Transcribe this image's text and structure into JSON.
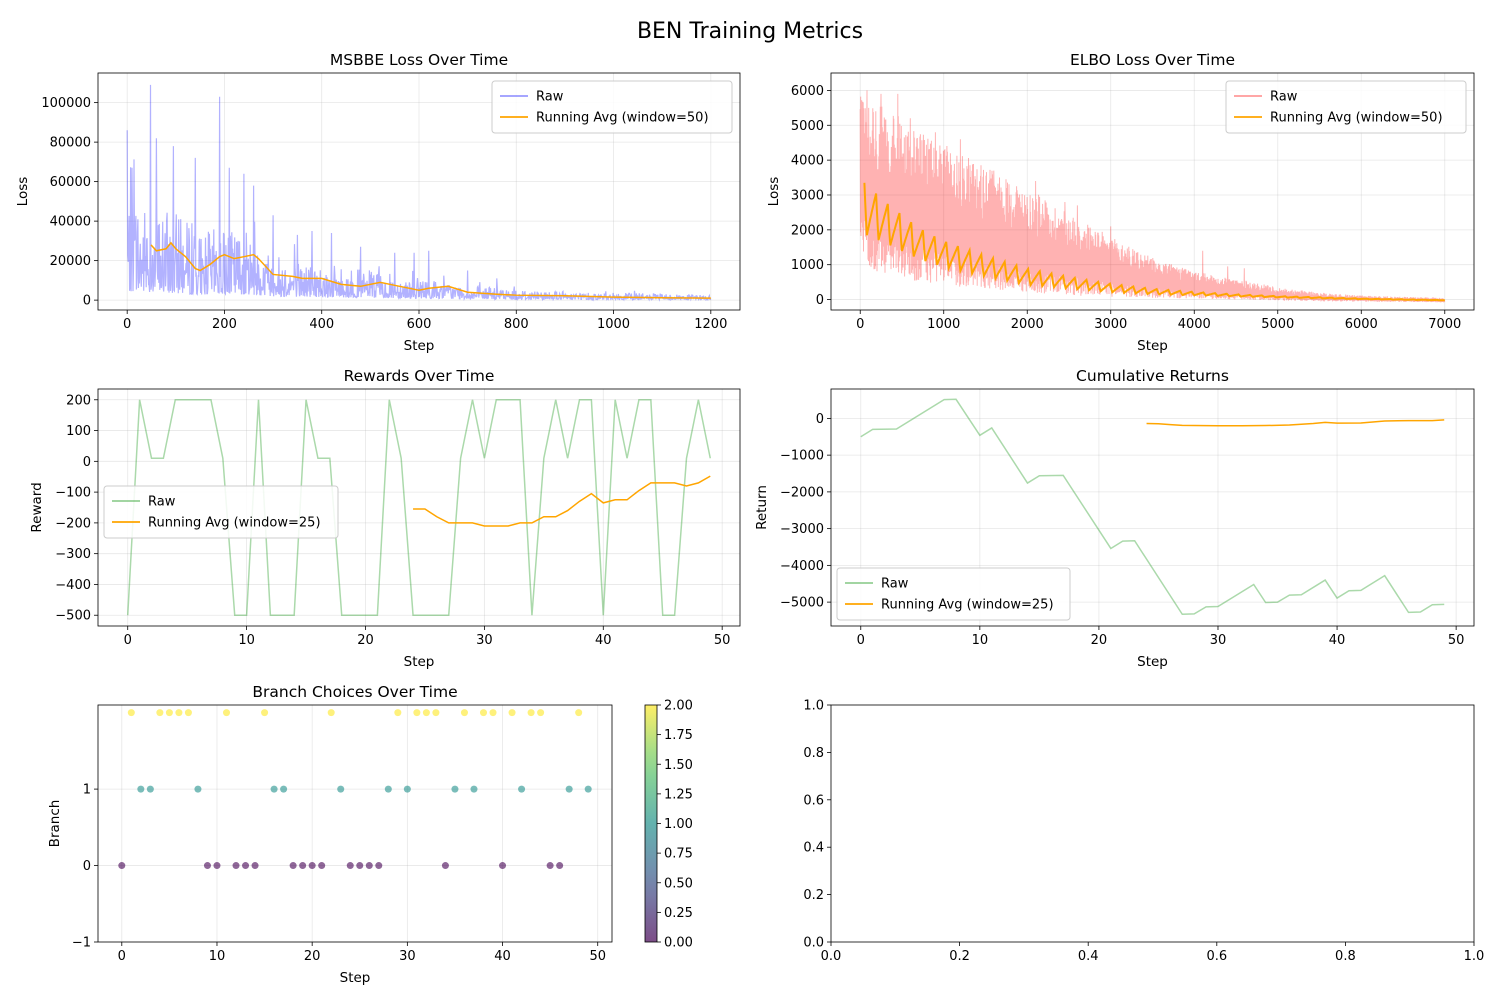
{
  "figure": {
    "title": "BEN Training Metrics"
  },
  "chart_data": [
    {
      "id": "msbbe",
      "type": "line",
      "title": "MSBBE Loss Over Time",
      "xlabel": "Step",
      "ylabel": "Loss",
      "xlim": [
        -60,
        1260
      ],
      "ylim": [
        -5000,
        115000
      ],
      "xticks": [
        0,
        200,
        400,
        600,
        800,
        1000,
        1200
      ],
      "yticks": [
        0,
        20000,
        40000,
        60000,
        80000,
        100000
      ],
      "grid": true,
      "legend": "top-right",
      "series": [
        {
          "name": "Raw",
          "color": "#0000ff",
          "alpha": 0.3,
          "style": "noisy",
          "n": 1201,
          "trend_x": [
            0,
            50,
            100,
            150,
            200,
            250,
            300,
            400,
            500,
            600,
            700,
            800,
            900,
            1000,
            1100,
            1200
          ],
          "trend_y": [
            30000,
            26000,
            24000,
            19000,
            20000,
            19000,
            13000,
            10000,
            8000,
            6000,
            4000,
            3000,
            2500,
            2000,
            1800,
            1500
          ],
          "peaks": [
            [
              0,
              86000
            ],
            [
              10,
              67000
            ],
            [
              48,
              109000
            ],
            [
              60,
              82000
            ],
            [
              95,
              78000
            ],
            [
              140,
              72000
            ],
            [
              190,
              103000
            ],
            [
              210,
              67000
            ],
            [
              240,
              64000
            ],
            [
              260,
              58000
            ],
            [
              300,
              43000
            ],
            [
              350,
              33000
            ],
            [
              380,
              35000
            ],
            [
              420,
              34000
            ],
            [
              480,
              27000
            ],
            [
              550,
              24000
            ],
            [
              590,
              24000
            ],
            [
              620,
              25000
            ],
            [
              700,
              15000
            ],
            [
              760,
              11000
            ]
          ]
        },
        {
          "name": "Running Avg (window=50)",
          "color": "#ffa500",
          "alpha": 1,
          "style": "line",
          "x": [
            49,
            60,
            80,
            90,
            100,
            120,
            140,
            150,
            170,
            190,
            200,
            220,
            240,
            260,
            270,
            300,
            340,
            360,
            400,
            440,
            480,
            520,
            560,
            600,
            620,
            660,
            700,
            760,
            800,
            900,
            1000,
            1100,
            1200
          ],
          "y": [
            28000,
            25000,
            26000,
            29000,
            26000,
            22000,
            16000,
            15000,
            18000,
            22000,
            23000,
            21000,
            22000,
            23000,
            21000,
            13000,
            12000,
            11000,
            11000,
            8000,
            7000,
            9000,
            7000,
            5000,
            6000,
            7000,
            4000,
            3000,
            2500,
            2200,
            1500,
            1200,
            1000
          ]
        }
      ]
    },
    {
      "id": "elbo",
      "type": "line",
      "title": "ELBO Loss Over Time",
      "xlabel": "Step",
      "ylabel": "Loss",
      "xlim": [
        -350,
        7350
      ],
      "ylim": [
        -300,
        6500
      ],
      "xticks": [
        0,
        1000,
        2000,
        3000,
        4000,
        5000,
        6000,
        7000
      ],
      "yticks": [
        0,
        1000,
        2000,
        3000,
        4000,
        5000,
        6000
      ],
      "grid": true,
      "legend": "top-right",
      "series": [
        {
          "name": "Raw",
          "color": "#ff0000",
          "alpha": 0.3,
          "style": "envelope",
          "x": [
            0,
            100,
            200,
            300,
            400,
            500,
            700,
            1000,
            1500,
            2000,
            2500,
            3000,
            3500,
            4000,
            4500,
            5000,
            5500,
            6000,
            6500,
            7000
          ],
          "upper": [
            6200,
            5800,
            5600,
            5500,
            5400,
            5200,
            4800,
            4500,
            3800,
            3200,
            2500,
            1800,
            1200,
            800,
            600,
            350,
            200,
            120,
            80,
            50
          ],
          "lower": [
            1500,
            900,
            800,
            750,
            700,
            600,
            500,
            400,
            300,
            200,
            120,
            80,
            50,
            20,
            0,
            -30,
            -50,
            -60,
            -70,
            -80
          ],
          "spikes": [
            [
              80,
              6000
            ],
            [
              250,
              5900
            ],
            [
              450,
              5900
            ],
            [
              600,
              5200
            ],
            [
              900,
              4800
            ],
            [
              1200,
              4600
            ],
            [
              1600,
              3700
            ],
            [
              2100,
              3400
            ],
            [
              2450,
              2800
            ],
            [
              2600,
              2700
            ],
            [
              3000,
              2100
            ],
            [
              4100,
              1400
            ],
            [
              4400,
              950
            ],
            [
              4600,
              900
            ]
          ]
        },
        {
          "name": "Running Avg (window=50)",
          "color": "#ffa500",
          "alpha": 1,
          "style": "sawtooth",
          "x_start": 50,
          "x_end": 7000,
          "period": 140,
          "env_x": [
            50,
            300,
            700,
            1000,
            1500,
            2000,
            2500,
            3000,
            3500,
            4000,
            4500,
            5000,
            6000,
            7000
          ],
          "env_y": [
            2600,
            2200,
            1600,
            1300,
            950,
            650,
            480,
            330,
            230,
            170,
            120,
            80,
            20,
            -20
          ],
          "amp_y": [
            750,
            600,
            450,
            380,
            300,
            230,
            170,
            120,
            80,
            50,
            30,
            20,
            10,
            5
          ]
        }
      ]
    },
    {
      "id": "rewards",
      "type": "line",
      "title": "Rewards Over Time",
      "xlabel": "Step",
      "ylabel": "Reward",
      "xlim": [
        -2.5,
        51.5
      ],
      "ylim": [
        -535,
        235
      ],
      "xticks": [
        0,
        10,
        20,
        30,
        40,
        50
      ],
      "yticks": [
        -500,
        -400,
        -300,
        -200,
        -100,
        0,
        100,
        200
      ],
      "grid": true,
      "legend": "center-left",
      "series": [
        {
          "name": "Raw",
          "color": "#2ca02c",
          "alpha": 0.4,
          "style": "line",
          "x": [
            0,
            1,
            2,
            3,
            4,
            5,
            6,
            7,
            8,
            9,
            10,
            11,
            12,
            13,
            14,
            15,
            16,
            17,
            18,
            19,
            20,
            21,
            22,
            23,
            24,
            25,
            26,
            27,
            28,
            29,
            30,
            31,
            32,
            33,
            34,
            35,
            36,
            37,
            38,
            39,
            40,
            41,
            42,
            43,
            44,
            45,
            46,
            47,
            48,
            49
          ],
          "y": [
            -500,
            200,
            10,
            10,
            200,
            200,
            200,
            200,
            10,
            -500,
            -500,
            200,
            -500,
            -500,
            -500,
            200,
            10,
            10,
            -500,
            -500,
            -500,
            -500,
            200,
            10,
            -500,
            -500,
            -500,
            -500,
            10,
            200,
            10,
            200,
            200,
            200,
            -500,
            10,
            200,
            10,
            200,
            200,
            -500,
            200,
            10,
            200,
            200,
            -500,
            -500,
            10,
            200,
            10
          ]
        },
        {
          "name": "Running Avg (window=25)",
          "color": "#ffa500",
          "alpha": 1,
          "style": "line",
          "x": [
            24,
            25,
            26,
            27,
            28,
            29,
            30,
            31,
            32,
            33,
            34,
            35,
            36,
            37,
            38,
            39,
            40,
            41,
            42,
            43,
            44,
            45,
            46,
            47,
            48,
            49
          ],
          "y": [
            -155,
            -155,
            -180,
            -200,
            -200,
            -200,
            -210,
            -210,
            -210,
            -200,
            -200,
            -180,
            -180,
            -160,
            -130,
            -105,
            -135,
            -125,
            -125,
            -95,
            -70,
            -70,
            -70,
            -80,
            -70,
            -48
          ]
        }
      ]
    },
    {
      "id": "returns",
      "type": "line",
      "title": "Cumulative Returns",
      "xlabel": "Step",
      "ylabel": "Return",
      "xlim": [
        -2.5,
        51.5
      ],
      "ylim": [
        -5650,
        800
      ],
      "xticks": [
        0,
        10,
        20,
        30,
        40,
        50
      ],
      "yticks": [
        -5000,
        -4000,
        -3000,
        -2000,
        -1000,
        0
      ],
      "grid": true,
      "legend": "bottom-left",
      "series": [
        {
          "name": "Raw",
          "color": "#2ca02c",
          "alpha": 0.4,
          "style": "line",
          "x": [
            0,
            1,
            3,
            7,
            8,
            10,
            11,
            14,
            15,
            17,
            21,
            22,
            23,
            27,
            28,
            29,
            30,
            33,
            34,
            35,
            36,
            37,
            39,
            40,
            41,
            42,
            44,
            46,
            47,
            48,
            49
          ],
          "y": [
            -500,
            -300,
            -290,
            510,
            520,
            -460,
            -260,
            -1760,
            -1560,
            -1550,
            -3540,
            -3340,
            -3330,
            -5330,
            -5320,
            -5130,
            -5120,
            -4520,
            -5010,
            -5000,
            -4810,
            -4800,
            -4400,
            -4890,
            -4690,
            -4680,
            -4280,
            -5280,
            -5270,
            -5070,
            -5060
          ]
        },
        {
          "name": "Running Avg (window=25)",
          "color": "#ffa500",
          "alpha": 1,
          "style": "line",
          "x": [
            24,
            25,
            26,
            27,
            28,
            30,
            32,
            34,
            36,
            38,
            39,
            40,
            42,
            44,
            46,
            48,
            49
          ],
          "y": [
            -140,
            -145,
            -170,
            -190,
            -195,
            -200,
            -200,
            -195,
            -180,
            -140,
            -110,
            -130,
            -125,
            -70,
            -60,
            -60,
            -40
          ]
        }
      ]
    },
    {
      "id": "branch",
      "type": "scatter",
      "title": "Branch Choices Over Time",
      "xlabel": "Step",
      "ylabel": "Branch",
      "xlim": [
        -2.5,
        51.5
      ],
      "ylim": [
        -1,
        2.1
      ],
      "xticks": [
        0,
        10,
        20,
        30,
        40,
        50
      ],
      "yticks": [
        -1,
        0,
        1
      ],
      "grid": true,
      "colormap": "viridis",
      "alpha": 0.6,
      "colorbar": {
        "min": 0,
        "max": 2,
        "ticks": [
          0.0,
          0.25,
          0.5,
          0.75,
          1.0,
          1.25,
          1.5,
          1.75,
          2.0
        ]
      },
      "x": [
        0,
        1,
        2,
        3,
        4,
        5,
        6,
        7,
        8,
        9,
        10,
        11,
        12,
        13,
        14,
        15,
        16,
        17,
        18,
        19,
        20,
        21,
        22,
        23,
        24,
        25,
        26,
        27,
        28,
        29,
        30,
        31,
        32,
        33,
        34,
        35,
        36,
        37,
        38,
        39,
        40,
        41,
        42,
        43,
        44,
        45,
        46,
        47,
        48,
        49
      ],
      "y": [
        0,
        2,
        1,
        1,
        2,
        2,
        2,
        2,
        1,
        0,
        0,
        2,
        0,
        0,
        0,
        2,
        1,
        1,
        0,
        0,
        0,
        0,
        2,
        1,
        0,
        0,
        0,
        0,
        1,
        2,
        1,
        2,
        2,
        2,
        0,
        1,
        2,
        1,
        2,
        2,
        0,
        2,
        1,
        2,
        2,
        0,
        0,
        1,
        2,
        1
      ]
    },
    {
      "id": "empty",
      "type": "line",
      "title": "",
      "xlabel": "",
      "ylabel": "",
      "xlim": [
        0,
        1
      ],
      "ylim": [
        0,
        1
      ],
      "xticks": [
        0.0,
        0.2,
        0.4,
        0.6,
        0.8,
        1.0
      ],
      "yticks": [
        0.0,
        0.2,
        0.4,
        0.6,
        0.8,
        1.0
      ],
      "grid": false,
      "series": []
    }
  ]
}
